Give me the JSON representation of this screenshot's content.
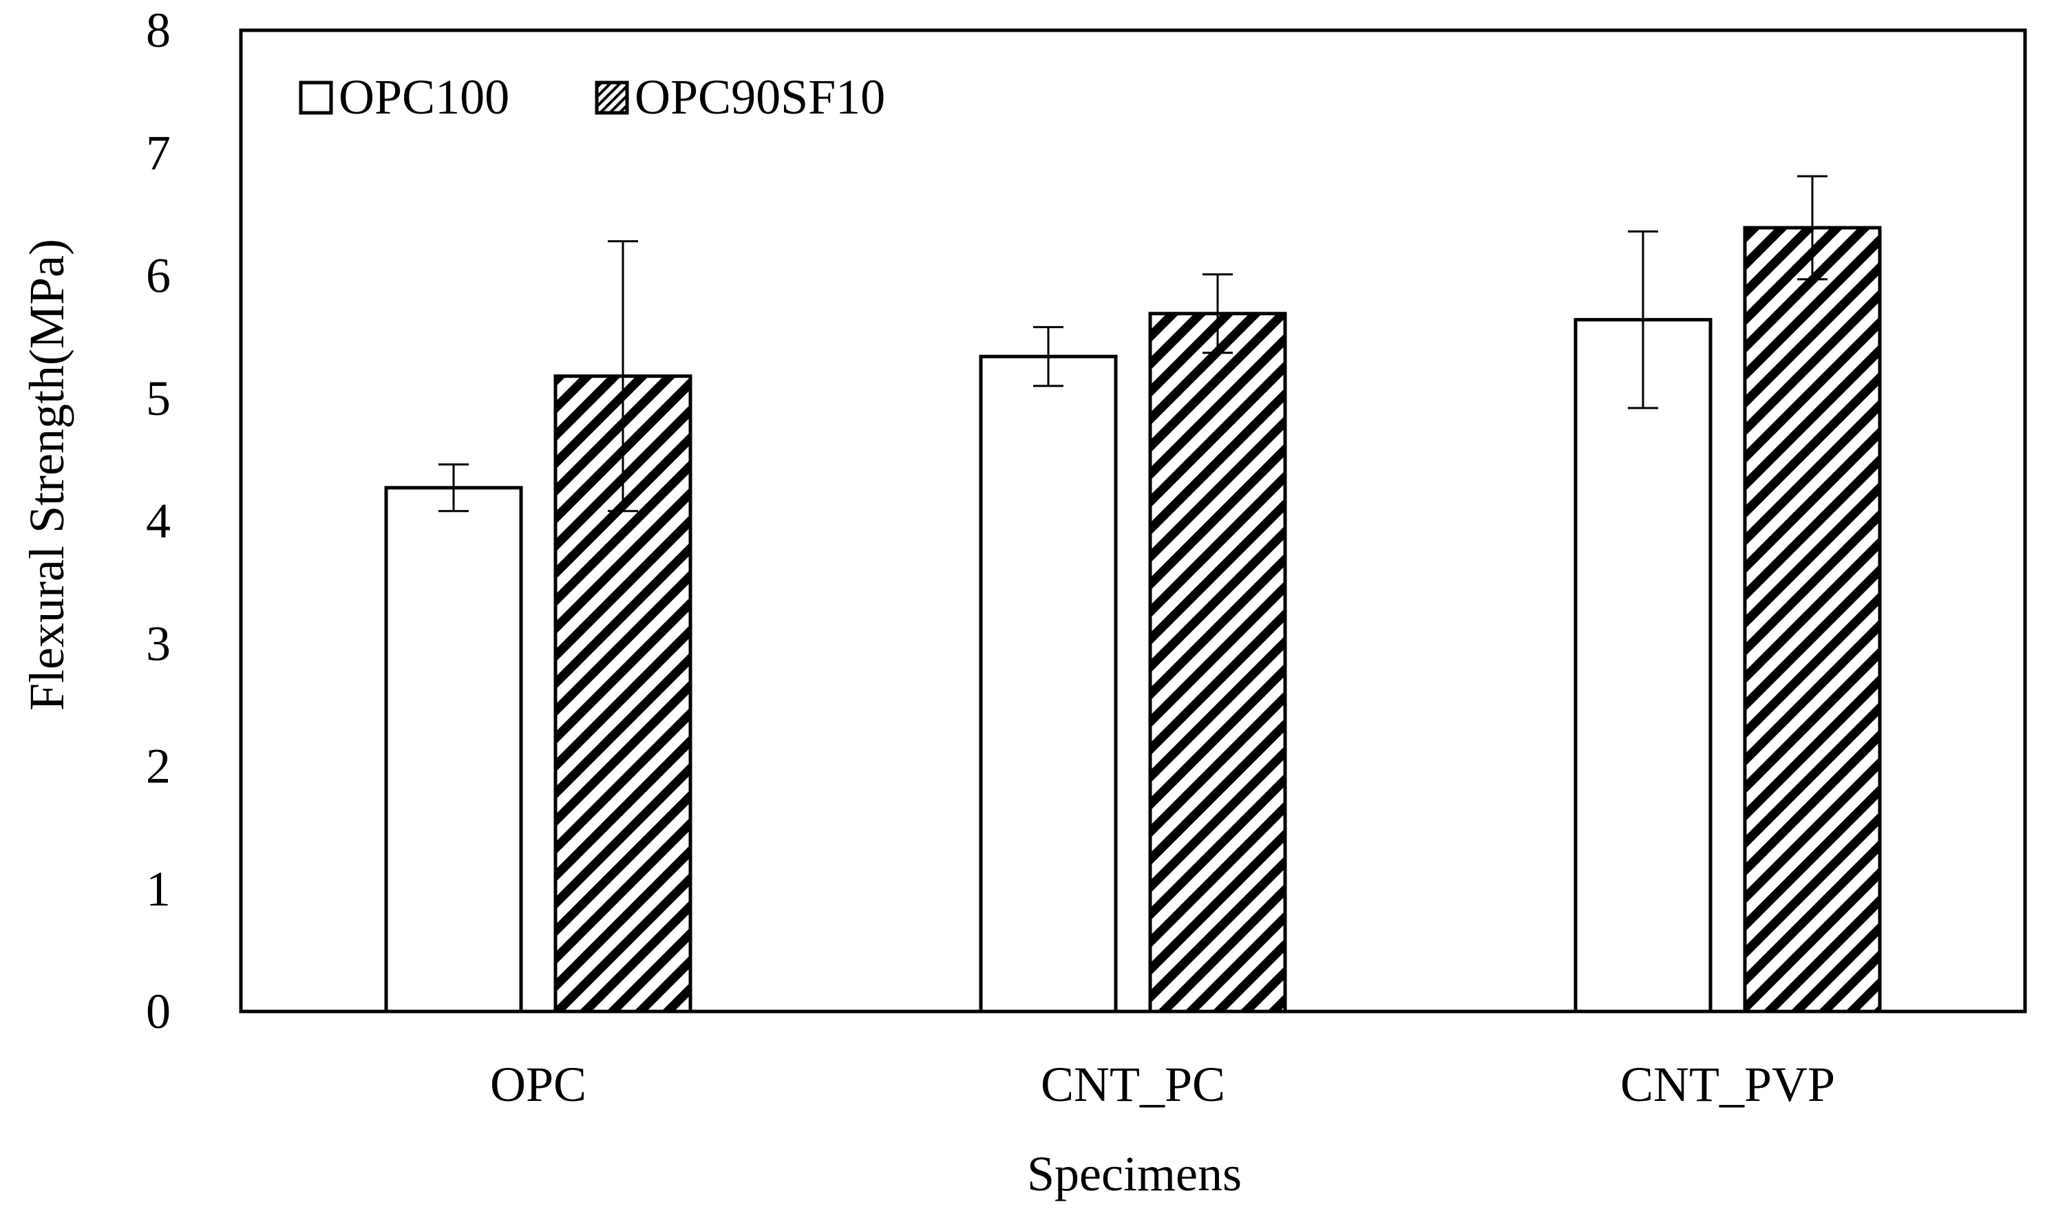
{
  "chart_data": {
    "type": "bar",
    "title": "",
    "xlabel": "Specimens",
    "ylabel": "Flexural Strength(MPa)",
    "categories": [
      "OPC",
      "CNT_PC",
      "CNT_PVP"
    ],
    "ylim": [
      0,
      8
    ],
    "yticks": [
      "0",
      "1",
      "2",
      "3",
      "4",
      "5",
      "6",
      "7",
      "8"
    ],
    "grid": false,
    "legend_position": "top-left",
    "series": [
      {
        "name": "OPC100",
        "pattern": "none",
        "values": [
          4.27,
          5.34,
          5.64
        ],
        "error": [
          0.19,
          0.24,
          0.72
        ]
      },
      {
        "name": "OPC90SF10",
        "pattern": "diagonal-hatch",
        "values": [
          5.18,
          5.69,
          6.39
        ],
        "error": [
          1.1,
          0.32,
          0.42
        ]
      }
    ],
    "colors": {
      "axis": "#000000",
      "bar_fill": "#ffffff",
      "hatch": "#000000"
    }
  }
}
